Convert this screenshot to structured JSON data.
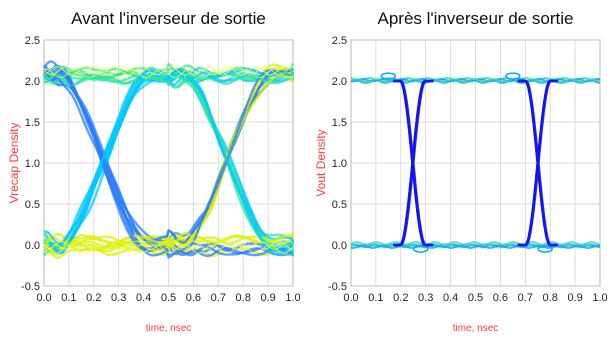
{
  "charts": [
    {
      "title": "Avant l'inverseur de sortie",
      "ylabel": "Vrecap Density",
      "xlabel": "time, nsec"
    },
    {
      "title": "Après l'inverseur de sortie",
      "ylabel": "Vout Density",
      "xlabel": "time, nsec"
    }
  ],
  "chart_data": [
    {
      "type": "scatter",
      "subtype": "eye-diagram-density",
      "title": "Avant l'inverseur de sortie",
      "xlabel": "time, nsec",
      "ylabel": "Vrecap Density",
      "xlim": [
        0.0,
        1.0
      ],
      "ylim": [
        -0.5,
        2.5
      ],
      "x_ticks": [
        "0.0",
        "0.1",
        "0.2",
        "0.3",
        "0.4",
        "0.5",
        "0.6",
        "0.7",
        "0.8",
        "0.9",
        "1.0"
      ],
      "y_ticks": [
        "-0.5",
        "0.0",
        "0.5",
        "1.0",
        "1.5",
        "2.0",
        "2.5"
      ],
      "high_level": 2.1,
      "low_level": 0.0,
      "crossings": [
        {
          "x": 0.24,
          "y": 1.0
        },
        {
          "x": 0.74,
          "y": 1.0
        }
      ],
      "transitions": [
        {
          "x_start": 0.05,
          "x_end": 0.45
        },
        {
          "x_start": 0.55,
          "x_end": 0.95
        }
      ],
      "colors": [
        "#2a7dff",
        "#00c8ff",
        "#2ee6a0",
        "#d8f000",
        "#ffffff"
      ]
    },
    {
      "type": "scatter",
      "subtype": "eye-diagram-density",
      "title": "Après l'inverseur de sortie",
      "xlabel": "time, nsec",
      "ylabel": "Vout Density",
      "xlim": [
        0.0,
        1.0
      ],
      "ylim": [
        -0.5,
        2.5
      ],
      "x_ticks": [
        "0.0",
        "0.1",
        "0.2",
        "0.3",
        "0.4",
        "0.5",
        "0.6",
        "0.7",
        "0.8",
        "0.9",
        "1.0"
      ],
      "y_ticks": [
        "-0.5",
        "0.0",
        "0.5",
        "1.0",
        "1.5",
        "2.0",
        "2.5"
      ],
      "high_level": 2.0,
      "low_level": 0.0,
      "crossings": [
        {
          "x": 0.25,
          "y": 1.0
        },
        {
          "x": 0.75,
          "y": 1.0
        }
      ],
      "transitions": [
        {
          "x_start": 0.2,
          "x_end": 0.3
        },
        {
          "x_start": 0.7,
          "x_end": 0.8
        }
      ],
      "colors": [
        "#1a1aff",
        "#00b4ff",
        "#40e0a0",
        "#d8f000"
      ]
    }
  ]
}
